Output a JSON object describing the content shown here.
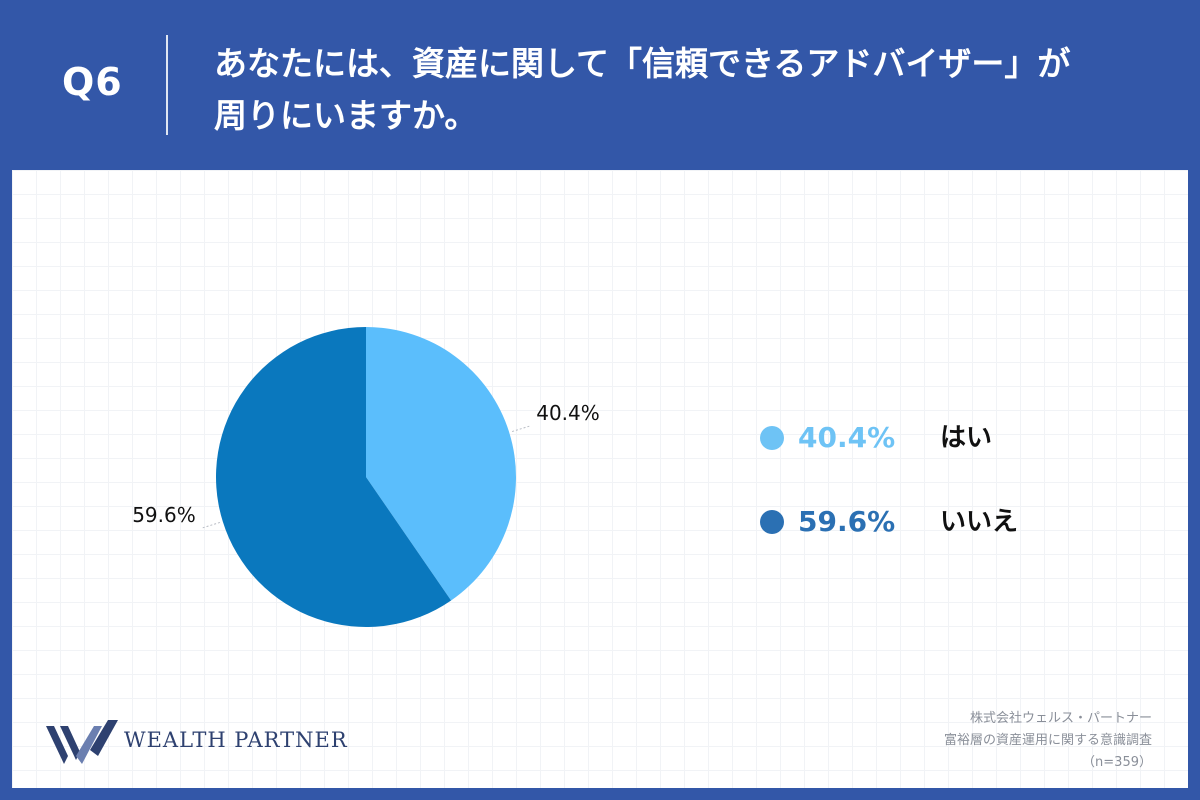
{
  "header": {
    "q_number": "Q6",
    "question_line1": "あなたには、資産に関して「信頼できるアドバイザー」が",
    "question_line2": "周りにいますか。"
  },
  "chart_data": {
    "type": "pie",
    "categories": [
      "はい",
      "いいえ"
    ],
    "values": [
      40.4,
      59.6
    ],
    "value_labels": [
      "40.4%",
      "59.6%"
    ],
    "colors": [
      "#5bbefc",
      "#0a78be"
    ],
    "legend_colors": [
      "#6ec3f5",
      "#2b70b3"
    ],
    "legend_placement": "right",
    "start_angle": "12 o'clock, clockwise"
  },
  "legend": {
    "items": [
      {
        "pct": "40.4%",
        "name": "はい"
      },
      {
        "pct": "59.6%",
        "name": "いいえ"
      }
    ]
  },
  "footer": {
    "logo_text": "WEALTH PARTNER",
    "credit_line1": "株式会社ウェルス・パートナー",
    "credit_line2": "富裕層の資産運用に関する意識調査",
    "credit_line3": "（n=359）"
  }
}
